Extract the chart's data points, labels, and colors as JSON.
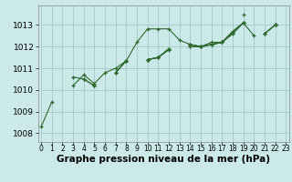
{
  "background_color": "#cce9e9",
  "grid_color": "#aacccc",
  "line_color": "#2d6a2d",
  "marker": "+",
  "xlabel": "Graphe pression niveau de la mer (hPa)",
  "xlabel_fontsize": 7.5,
  "ytick_fontsize": 6.5,
  "xtick_fontsize": 5.5,
  "yticks": [
    1008,
    1009,
    1010,
    1011,
    1012,
    1013
  ],
  "xticks": [
    0,
    1,
    2,
    3,
    4,
    5,
    6,
    7,
    8,
    9,
    10,
    11,
    12,
    13,
    14,
    15,
    16,
    17,
    18,
    19,
    20,
    21,
    22,
    23
  ],
  "xlim": [
    -0.3,
    23.3
  ],
  "ylim": [
    1007.6,
    1013.9
  ],
  "series": [
    [
      1008.3,
      1009.45,
      null,
      1010.2,
      1010.7,
      1010.3,
      1010.8,
      1011.0,
      1011.35,
      1012.2,
      1012.82,
      1012.82,
      1012.82,
      1012.3,
      1012.1,
      1012.0,
      1012.2,
      1012.2,
      null,
      1013.5,
      null,
      1012.6,
      1013.0,
      null
    ],
    [
      null,
      null,
      null,
      1010.6,
      1010.5,
      1010.2,
      null,
      1010.8,
      1011.35,
      null,
      1011.4,
      1011.5,
      1011.85,
      null,
      1012.0,
      1012.0,
      1012.1,
      1012.2,
      1012.6,
      1013.1,
      1012.5,
      null,
      1013.0,
      null
    ],
    [
      null,
      null,
      null,
      null,
      1010.5,
      1010.2,
      null,
      1010.8,
      1011.35,
      null,
      1011.4,
      1011.5,
      1011.9,
      null,
      1012.0,
      1012.0,
      1012.1,
      1012.2,
      1012.6,
      1013.1,
      null,
      null,
      1013.0,
      null
    ],
    [
      null,
      null,
      null,
      null,
      null,
      1010.2,
      null,
      1010.8,
      1011.35,
      null,
      1011.4,
      1011.5,
      1011.9,
      null,
      1012.1,
      1012.0,
      1012.1,
      1012.2,
      1012.7,
      1013.1,
      null,
      1012.6,
      1013.0,
      null
    ],
    [
      null,
      null,
      null,
      null,
      null,
      null,
      null,
      null,
      null,
      null,
      1011.4,
      1011.5,
      1011.9,
      null,
      1012.1,
      1012.0,
      1012.1,
      1012.2,
      1012.7,
      1013.1,
      null,
      1012.6,
      1013.0,
      null
    ]
  ]
}
